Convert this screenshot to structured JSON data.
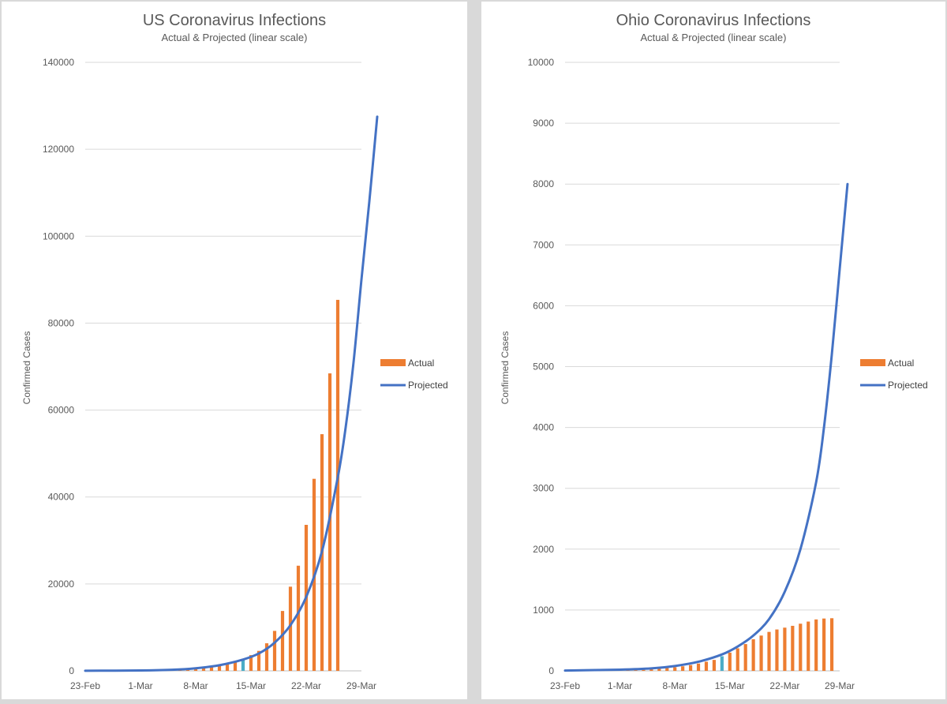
{
  "chart_data": [
    {
      "type": "bar",
      "title": "US Coronavirus Infections",
      "subtitle": "Actual & Projected (linear scale)",
      "ylabel": "Confirmed Cases",
      "ylim": [
        0,
        140000
      ],
      "yticks": [
        0,
        20000,
        40000,
        60000,
        80000,
        100000,
        120000,
        140000
      ],
      "xticks": [
        "23-Feb",
        "1-Mar",
        "8-Mar",
        "15-Mar",
        "22-Mar",
        "29-Mar"
      ],
      "x_start": "23-Feb",
      "x_end": "29-Mar",
      "grid": true,
      "legend_position": "right",
      "highlight_date": "14-Mar",
      "series": [
        {
          "name": "Actual",
          "kind": "bar",
          "color": "#ed7d31",
          "highlight_color": "#4bacc6",
          "points": [
            [
              "1-Mar",
              75
            ],
            [
              "2-Mar",
              100
            ],
            [
              "3-Mar",
              124
            ],
            [
              "4-Mar",
              158
            ],
            [
              "5-Mar",
              221
            ],
            [
              "6-Mar",
              319
            ],
            [
              "7-Mar",
              435
            ],
            [
              "8-Mar",
              541
            ],
            [
              "9-Mar",
              704
            ],
            [
              "10-Mar",
              994
            ],
            [
              "11-Mar",
              1301
            ],
            [
              "12-Mar",
              1630
            ],
            [
              "13-Mar",
              2183
            ],
            [
              "14-Mar",
              2770
            ],
            [
              "15-Mar",
              3613
            ],
            [
              "16-Mar",
              4596
            ],
            [
              "17-Mar",
              6344
            ],
            [
              "18-Mar",
              9197
            ],
            [
              "19-Mar",
              13779
            ],
            [
              "20-Mar",
              19367
            ],
            [
              "21-Mar",
              24192
            ],
            [
              "22-Mar",
              33592
            ],
            [
              "23-Mar",
              44183
            ],
            [
              "24-Mar",
              54453
            ],
            [
              "25-Mar",
              68440
            ],
            [
              "26-Mar",
              85356
            ]
          ]
        },
        {
          "name": "Projected",
          "kind": "line",
          "color": "#4472c4",
          "points": [
            [
              "23-Feb",
              20
            ],
            [
              "1-Mar",
              90
            ],
            [
              "5-Mar",
              250
            ],
            [
              "8-Mar",
              600
            ],
            [
              "11-Mar",
              1300
            ],
            [
              "14-Mar",
              2600
            ],
            [
              "16-Mar",
              4000
            ],
            [
              "18-Mar",
              6500
            ],
            [
              "20-Mar",
              10500
            ],
            [
              "22-Mar",
              17000
            ],
            [
              "24-Mar",
              27500
            ],
            [
              "26-Mar",
              44500
            ],
            [
              "27-Mar",
              56000
            ],
            [
              "28-Mar",
              71000
            ],
            [
              "29-Mar",
              90000
            ],
            [
              "30-Mar",
              108000
            ],
            [
              "31-Mar",
              127500
            ]
          ]
        }
      ]
    },
    {
      "type": "bar",
      "title": "Ohio Coronavirus Infections",
      "subtitle": "Actual & Projected (linear scale)",
      "ylabel": "Confirmed Cases",
      "ylim": [
        0,
        10000
      ],
      "yticks": [
        0,
        1000,
        2000,
        3000,
        4000,
        5000,
        6000,
        7000,
        8000,
        9000,
        10000
      ],
      "xticks": [
        "23-Feb",
        "1-Mar",
        "8-Mar",
        "15-Mar",
        "22-Mar",
        "29-Mar"
      ],
      "x_start": "23-Feb",
      "x_end": "29-Mar",
      "grid": true,
      "legend_position": "right",
      "highlight_date": "14-Mar",
      "series": [
        {
          "name": "Actual",
          "kind": "bar",
          "color": "#ed7d31",
          "highlight_color": "#4bacc6",
          "points": [
            [
              "1-Mar",
              5
            ],
            [
              "2-Mar",
              8
            ],
            [
              "3-Mar",
              12
            ],
            [
              "4-Mar",
              18
            ],
            [
              "5-Mar",
              25
            ],
            [
              "6-Mar",
              35
            ],
            [
              "7-Mar",
              45
            ],
            [
              "8-Mar",
              60
            ],
            [
              "9-Mar",
              75
            ],
            [
              "10-Mar",
              95
            ],
            [
              "11-Mar",
              120
            ],
            [
              "12-Mar",
              150
            ],
            [
              "13-Mar",
              180
            ],
            [
              "14-Mar",
              240
            ],
            [
              "15-Mar",
              300
            ],
            [
              "16-Mar",
              370
            ],
            [
              "17-Mar",
              440
            ],
            [
              "18-Mar",
              520
            ],
            [
              "19-Mar",
              580
            ],
            [
              "20-Mar",
              640
            ],
            [
              "21-Mar",
              680
            ],
            [
              "22-Mar",
              710
            ],
            [
              "23-Mar",
              740
            ],
            [
              "24-Mar",
              775
            ],
            [
              "25-Mar",
              810
            ],
            [
              "26-Mar",
              845
            ],
            [
              "27-Mar",
              860
            ],
            [
              "28-Mar",
              865
            ]
          ]
        },
        {
          "name": "Projected",
          "kind": "line",
          "color": "#4472c4",
          "points": [
            [
              "23-Feb",
              5
            ],
            [
              "1-Mar",
              20
            ],
            [
              "5-Mar",
              40
            ],
            [
              "8-Mar",
              80
            ],
            [
              "11-Mar",
              150
            ],
            [
              "14-Mar",
              270
            ],
            [
              "16-Mar",
              400
            ],
            [
              "18-Mar",
              580
            ],
            [
              "20-Mar",
              850
            ],
            [
              "22-Mar",
              1300
            ],
            [
              "24-Mar",
              2000
            ],
            [
              "26-Mar",
              3100
            ],
            [
              "27-Mar",
              4000
            ],
            [
              "28-Mar",
              5200
            ],
            [
              "29-Mar",
              6600
            ],
            [
              "30-Mar",
              8000
            ]
          ]
        }
      ]
    }
  ]
}
